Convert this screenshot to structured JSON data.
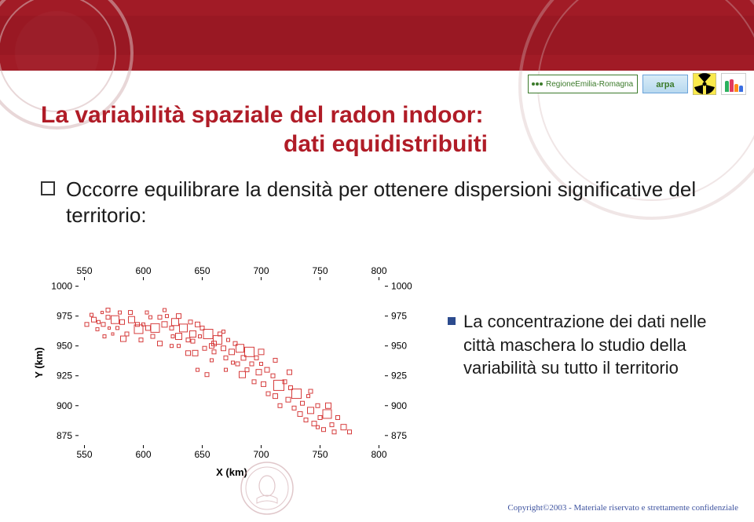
{
  "colors": {
    "header_bg": "#a11b26",
    "title": "#b01c27",
    "body_text": "#1b1b1b",
    "accent_blue": "#2c4b8e",
    "chart_red": "#d63d3d",
    "chart_tick": "#000000",
    "copyright": "#3f54a0"
  },
  "logos": {
    "region": "RegioneEmilia-Romagna",
    "arpa": "arpa"
  },
  "title": {
    "line1": "La variabilità spaziale del radon indoor:",
    "line2": "dati equidistribuiti"
  },
  "main_bullet": "Occorre equilibrare la densità per ottenere dispersioni significative del territorio:",
  "right_bullet": "La concentrazione dei dati nelle città maschera lo studio della variabilità su tutto il territorio",
  "chart": {
    "type": "scatter",
    "xlabel": "X (km)",
    "ylabel": "Y (km)",
    "xlim": [
      545,
      805
    ],
    "ylim": [
      867,
      1005
    ],
    "x_ticks": [
      550,
      600,
      650,
      700,
      750,
      800
    ],
    "y_ticks": [
      875,
      900,
      925,
      950,
      975,
      1000
    ],
    "axis_fontsize": 12,
    "label_fontsize": 13,
    "marker_stroke": "#d63d3d",
    "marker_fill": "none",
    "background": "#ffffff",
    "points": [
      [
        558,
        972,
        6
      ],
      [
        562,
        970,
        4
      ],
      [
        566,
        968,
        5
      ],
      [
        570,
        974,
        5
      ],
      [
        571,
        965,
        3
      ],
      [
        576,
        972,
        10
      ],
      [
        578,
        965,
        4
      ],
      [
        582,
        970,
        6
      ],
      [
        586,
        960,
        5
      ],
      [
        590,
        972,
        8
      ],
      [
        595,
        968,
        5
      ],
      [
        596,
        964,
        11
      ],
      [
        600,
        968,
        4
      ],
      [
        604,
        965,
        6
      ],
      [
        606,
        974,
        4
      ],
      [
        608,
        958,
        5
      ],
      [
        610,
        965,
        11
      ],
      [
        614,
        974,
        5
      ],
      [
        618,
        968,
        7
      ],
      [
        620,
        975,
        4
      ],
      [
        624,
        965,
        5
      ],
      [
        625,
        958,
        4
      ],
      [
        627,
        970,
        9
      ],
      [
        630,
        975,
        6
      ],
      [
        634,
        965,
        10
      ],
      [
        638,
        955,
        5
      ],
      [
        640,
        970,
        5
      ],
      [
        642,
        960,
        8
      ],
      [
        646,
        968,
        6
      ],
      [
        648,
        958,
        4
      ],
      [
        650,
        965,
        5
      ],
      [
        652,
        948,
        5
      ],
      [
        655,
        960,
        12
      ],
      [
        658,
        950,
        6
      ],
      [
        660,
        945,
        5
      ],
      [
        663,
        955,
        11
      ],
      [
        665,
        960,
        5
      ],
      [
        668,
        948,
        6
      ],
      [
        670,
        940,
        5
      ],
      [
        672,
        955,
        4
      ],
      [
        675,
        945,
        7
      ],
      [
        678,
        952,
        5
      ],
      [
        680,
        935,
        5
      ],
      [
        682,
        948,
        10
      ],
      [
        685,
        940,
        6
      ],
      [
        688,
        930,
        5
      ],
      [
        690,
        945,
        12
      ],
      [
        692,
        935,
        5
      ],
      [
        694,
        920,
        5
      ],
      [
        696,
        940,
        5
      ],
      [
        698,
        928,
        7
      ],
      [
        700,
        935,
        4
      ],
      [
        702,
        918,
        6
      ],
      [
        705,
        930,
        6
      ],
      [
        706,
        910,
        5
      ],
      [
        710,
        925,
        5
      ],
      [
        712,
        908,
        6
      ],
      [
        715,
        917,
        13
      ],
      [
        716,
        900,
        5
      ],
      [
        720,
        920,
        5
      ],
      [
        723,
        905,
        6
      ],
      [
        725,
        915,
        5
      ],
      [
        728,
        898,
        5
      ],
      [
        730,
        910,
        12
      ],
      [
        733,
        893,
        6
      ],
      [
        735,
        902,
        5
      ],
      [
        738,
        888,
        5
      ],
      [
        740,
        908,
        4
      ],
      [
        742,
        896,
        8
      ],
      [
        745,
        885,
        6
      ],
      [
        748,
        900,
        5
      ],
      [
        750,
        890,
        5
      ],
      [
        753,
        880,
        5
      ],
      [
        756,
        893,
        11
      ],
      [
        760,
        884,
        5
      ],
      [
        762,
        878,
        5
      ],
      [
        765,
        890,
        5
      ],
      [
        770,
        882,
        7
      ],
      [
        775,
        878,
        5
      ],
      [
        567,
        958,
        4
      ],
      [
        583,
        956,
        7
      ],
      [
        598,
        955,
        5
      ],
      [
        614,
        952,
        6
      ],
      [
        630,
        950,
        4
      ],
      [
        644,
        944,
        7
      ],
      [
        658,
        938,
        4
      ],
      [
        668,
        962,
        4
      ],
      [
        580,
        978,
        4
      ],
      [
        603,
        978,
        4
      ],
      [
        570,
        980,
        5
      ],
      [
        565,
        978,
        3
      ],
      [
        630,
        958,
        8
      ],
      [
        642,
        954,
        5
      ],
      [
        660,
        952,
        6
      ],
      [
        676,
        936,
        4
      ],
      [
        684,
        926,
        8
      ],
      [
        700,
        945,
        7
      ],
      [
        712,
        938,
        5
      ],
      [
        724,
        928,
        6
      ],
      [
        742,
        912,
        5
      ],
      [
        748,
        882,
        4
      ],
      [
        757,
        900,
        7
      ],
      [
        552,
        968,
        5
      ],
      [
        556,
        976,
        4
      ],
      [
        561,
        964,
        4
      ],
      [
        574,
        960,
        3
      ],
      [
        589,
        978,
        5
      ],
      [
        618,
        980,
        4
      ],
      [
        624,
        950,
        4
      ],
      [
        638,
        944,
        6
      ],
      [
        646,
        930,
        4
      ],
      [
        654,
        926,
        5
      ],
      [
        670,
        930,
        4
      ]
    ]
  },
  "copyright": "Copyright©2003 - Materiale riservato e strettamente confidenziale"
}
